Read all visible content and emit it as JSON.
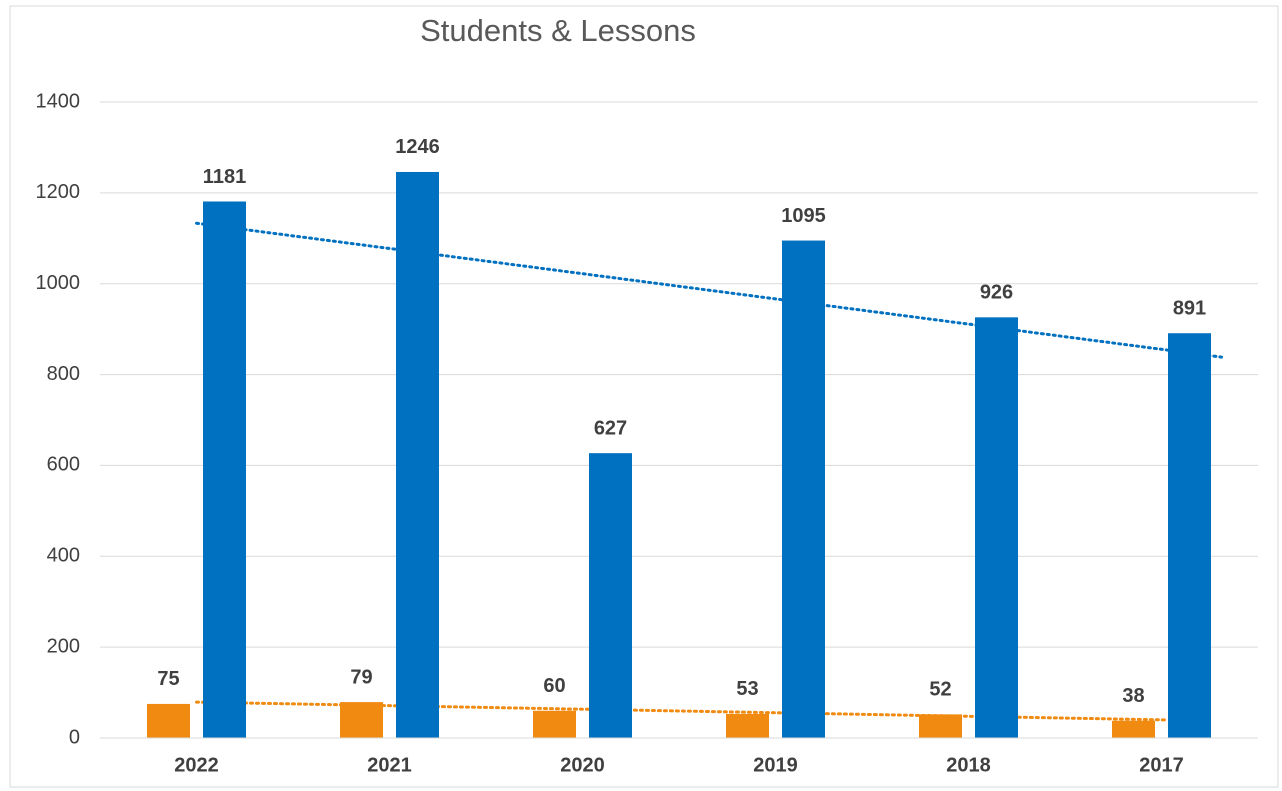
{
  "chart_data": {
    "type": "bar",
    "title": "Students & Lessons",
    "categories": [
      "2022",
      "2021",
      "2020",
      "2019",
      "2018",
      "2017"
    ],
    "series": [
      {
        "color": "#f08a10",
        "values": [
          75,
          79,
          60,
          53,
          52,
          38
        ]
      },
      {
        "color": "#0070c0",
        "values": [
          1181,
          1246,
          627,
          1095,
          926,
          891
        ]
      }
    ],
    "ylim": [
      0,
      1400
    ],
    "yticks": [
      0,
      200,
      400,
      600,
      800,
      1000,
      1200,
      1400
    ],
    "grid": true,
    "trendline": true
  }
}
